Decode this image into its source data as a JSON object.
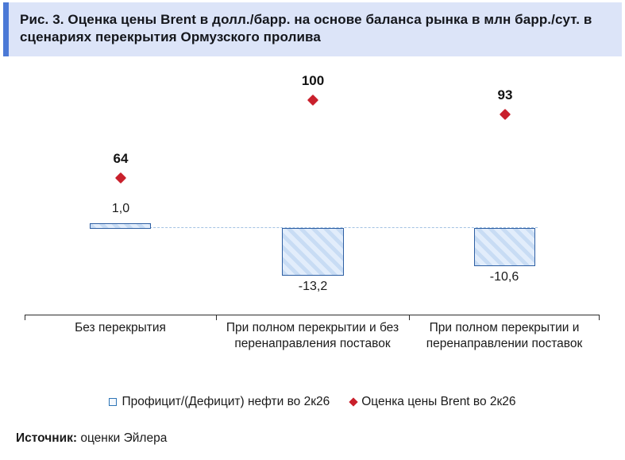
{
  "title": "Рис. 3. Оценка цены Brent в долл./барр. на основе баланса рынка в млн барр./сут. в сценариях перекрытия Ормузского пролива",
  "source": {
    "label": "Источник:",
    "text": "оценки Эйлера"
  },
  "legend": {
    "items": [
      {
        "label": "Профицит/(Дефицит) нефти во 2к26",
        "swatch": "open-square",
        "color": "#2e75b6"
      },
      {
        "label": "Оценка цены Brent во 2к26",
        "swatch": "diamond",
        "color": "#c9202c"
      }
    ]
  },
  "colors": {
    "title_background": "#dce4f8",
    "title_accent_bar": "#4b79d6",
    "bar_fill": "#e2edfb",
    "bar_hatch": "#c8dcf4",
    "bar_border": "#2e5fa3",
    "point_diamond": "#c9202c",
    "zero_line": "#a3c2e3",
    "axis": "#2b2b2b"
  },
  "chart_data": {
    "type": "bar",
    "subtype": "bar-with-scatter-overlay",
    "categories": [
      "Без перекрытия",
      "При полном перекрытии и без перенаправления поставок",
      "При полном перекрытии и перенаправлении поставок"
    ],
    "series": [
      {
        "name": "Профицит/(Дефицит) нефти во 2к26",
        "type": "bar",
        "units": "млн барр./сут.",
        "values": [
          1.0,
          -13.2,
          -10.6
        ],
        "value_labels": [
          "1,0",
          "-13,2",
          "-10,6"
        ]
      },
      {
        "name": "Оценка цены Brent во 2к26",
        "type": "scatter",
        "units": "долл./барр.",
        "values": [
          64,
          100,
          93
        ],
        "value_labels": [
          "64",
          "100",
          "93"
        ]
      }
    ],
    "title": "Оценка цены Brent в долл./барр. на основе баланса рынка в млн барр./сут. в сценариях перекрытия Ормузского пролива",
    "xlabel": "",
    "ylabel": "",
    "grid": false,
    "zero_line": "dashed",
    "legend_position": "bottom"
  }
}
